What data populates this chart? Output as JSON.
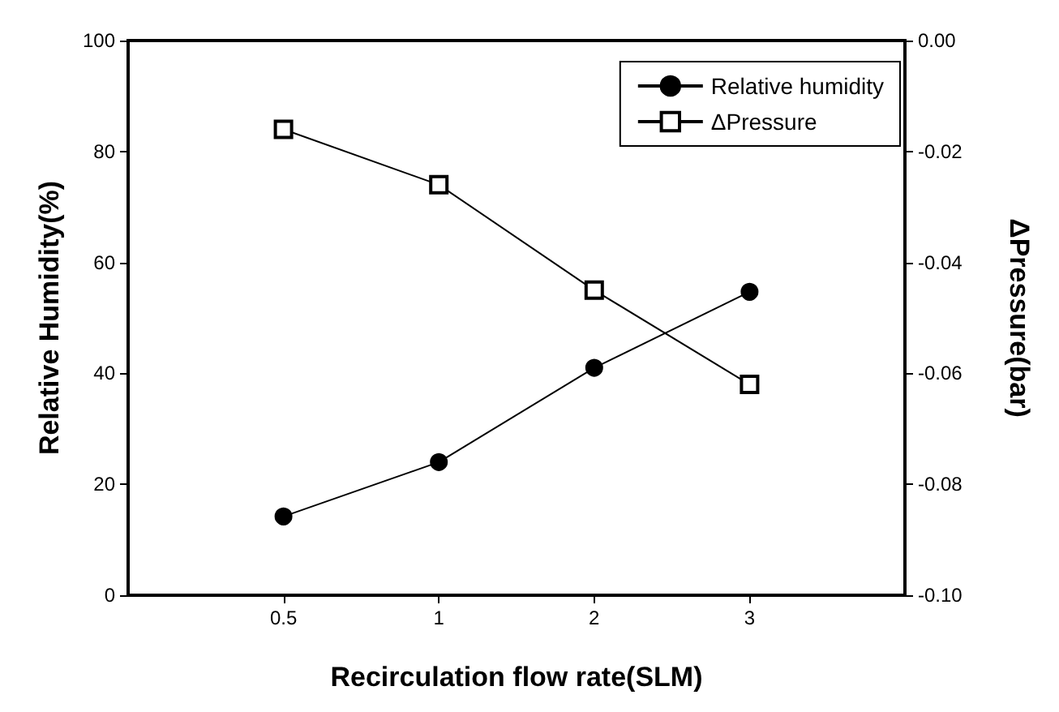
{
  "chart_data": {
    "type": "line",
    "xlabel": "Recirculation flow rate(SLM)",
    "ylabel": "Relative Humidity(%)",
    "y2label": "ΔPressure(bar)",
    "categories": [
      "0.5",
      "1",
      "2",
      "3"
    ],
    "series": [
      {
        "name": "Relative humidity",
        "color": "#000000",
        "marker": "circle",
        "values": [
          14.2,
          24.0,
          41.0,
          54.7
        ]
      },
      {
        "name": "ΔPressure",
        "color": "#000000",
        "marker": "square",
        "axis": "y2",
        "values": [
          -0.016,
          -0.026,
          -0.045,
          -0.062
        ]
      }
    ],
    "ylim": [
      0,
      100
    ],
    "yticks": [
      0,
      20,
      40,
      60,
      80,
      100
    ],
    "y2lim": [
      -0.1,
      0
    ],
    "y2ticks": [
      {
        "value": -0.1,
        "label": "-0.10"
      },
      -0.08,
      -0.06,
      -0.04,
      -0.02,
      {
        "value": 0,
        "label": "0.00"
      }
    ],
    "grid": false,
    "legend": "top right",
    "line_style": "solid"
  }
}
